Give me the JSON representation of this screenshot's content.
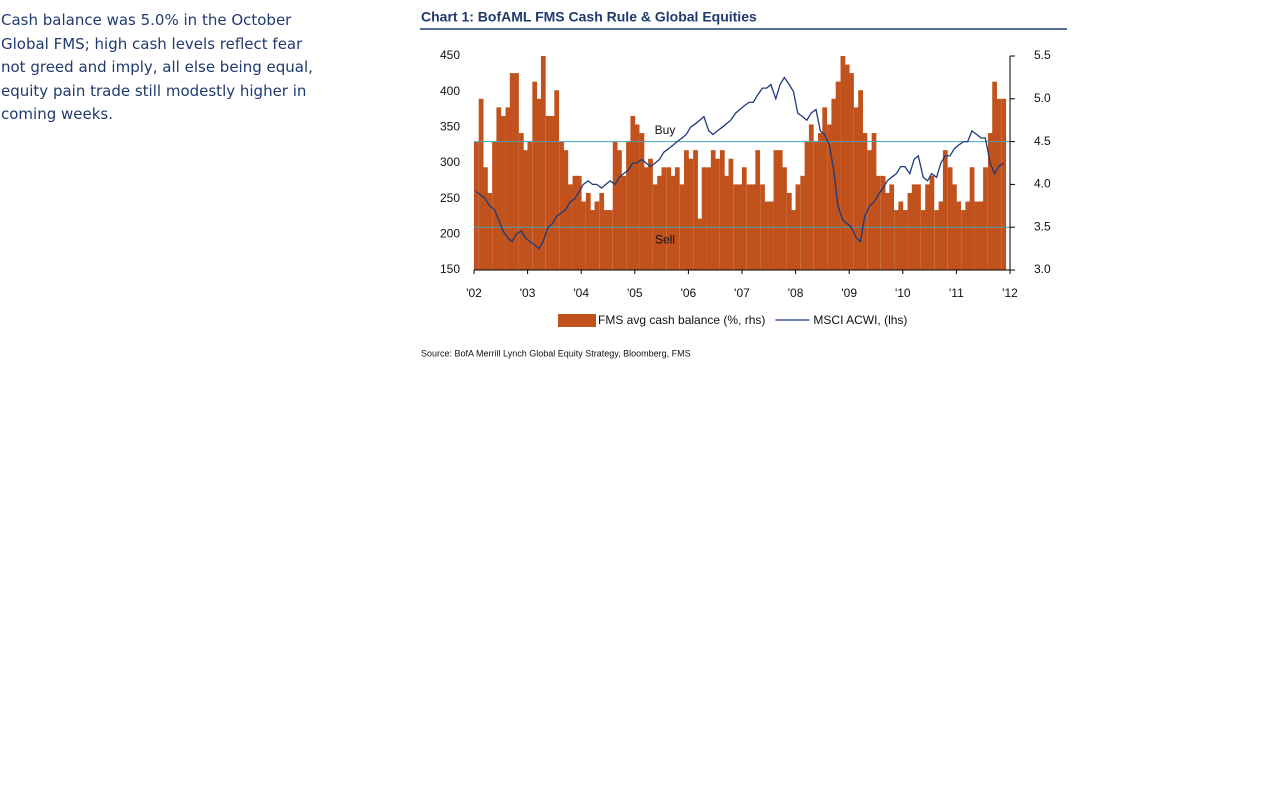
{
  "note_lines": [
    "Cash balance was 5.0% in the October",
    "Global FMS; high cash levels reflect fear",
    "not greed and imply, all else being equal,",
    "equity pain trade still modestly higher in",
    "coming weeks."
  ],
  "chart_data": {
    "type": "bar-line",
    "title": "Chart 1: BofAML FMS Cash Rule & Global Equities",
    "source": "Source: BofA Merrill Lynch Global Equity Strategy, Bloomberg, FMS",
    "xlim": [
      2002,
      2012
    ],
    "xticks": [
      {
        "value": 2002,
        "label": "'02"
      },
      {
        "value": 2003,
        "label": "'03"
      },
      {
        "value": 2004,
        "label": "'04"
      },
      {
        "value": 2005,
        "label": "'05"
      },
      {
        "value": 2006,
        "label": "'06"
      },
      {
        "value": 2007,
        "label": "'07"
      },
      {
        "value": 2008,
        "label": "'08"
      },
      {
        "value": 2009,
        "label": "'09"
      },
      {
        "value": 2010,
        "label": "'10"
      },
      {
        "value": 2011,
        "label": "'11"
      },
      {
        "value": 2012,
        "label": "'12"
      }
    ],
    "ylim": [
      150,
      450
    ],
    "yticks": [
      150,
      200,
      250,
      300,
      350,
      400,
      450
    ],
    "y2lim": [
      3,
      5.5
    ],
    "y2ticks": [
      {
        "value": 3,
        "label": "3.0"
      },
      3.5,
      {
        "value": 4,
        "label": "4.0"
      },
      4.5,
      {
        "value": 5,
        "label": "5.0"
      },
      5.5
    ],
    "reference_lines": [
      {
        "label": "Buy",
        "value": 4.5,
        "axis": "y2",
        "color": "#4a9fb3"
      },
      {
        "label": "Sell",
        "value": 3.5,
        "axis": "y2",
        "color": "#4a9fb3"
      }
    ],
    "x": [
      2002.04,
      2002.13,
      2002.21,
      2002.29,
      2002.38,
      2002.46,
      2002.54,
      2002.63,
      2002.71,
      2002.79,
      2002.88,
      2002.96,
      2003.04,
      2003.13,
      2003.21,
      2003.29,
      2003.38,
      2003.46,
      2003.54,
      2003.63,
      2003.71,
      2003.79,
      2003.88,
      2003.96,
      2004.04,
      2004.13,
      2004.21,
      2004.29,
      2004.38,
      2004.46,
      2004.54,
      2004.63,
      2004.71,
      2004.79,
      2004.88,
      2004.96,
      2005.04,
      2005.13,
      2005.21,
      2005.29,
      2005.38,
      2005.46,
      2005.54,
      2005.63,
      2005.71,
      2005.79,
      2005.88,
      2005.96,
      2006.04,
      2006.13,
      2006.21,
      2006.29,
      2006.38,
      2006.46,
      2006.54,
      2006.63,
      2006.71,
      2006.79,
      2006.88,
      2006.96,
      2007.04,
      2007.13,
      2007.21,
      2007.29,
      2007.38,
      2007.46,
      2007.54,
      2007.63,
      2007.71,
      2007.79,
      2007.88,
      2007.96,
      2008.04,
      2008.13,
      2008.21,
      2008.29,
      2008.38,
      2008.46,
      2008.54,
      2008.63,
      2008.71,
      2008.79,
      2008.88,
      2008.96,
      2009.04,
      2009.13,
      2009.21,
      2009.29,
      2009.38,
      2009.46,
      2009.54,
      2009.63,
      2009.71,
      2009.79,
      2009.88,
      2009.96,
      2010.04,
      2010.13,
      2010.21,
      2010.29,
      2010.38,
      2010.46,
      2010.54,
      2010.63,
      2010.71,
      2010.79,
      2010.88,
      2010.96,
      2011.04,
      2011.13,
      2011.21,
      2011.29,
      2011.38,
      2011.46,
      2011.54,
      2011.63,
      2011.71,
      2011.79,
      2011.88
    ],
    "series": [
      {
        "name": "FMS avg cash balance (%, rhs)",
        "type": "bar",
        "axis": "y2",
        "color": "#c1521d",
        "values": [
          4.5,
          5.0,
          4.2,
          3.9,
          4.5,
          4.9,
          4.8,
          4.9,
          5.3,
          5.3,
          4.6,
          4.4,
          4.5,
          5.2,
          5.0,
          5.5,
          4.8,
          4.8,
          5.1,
          4.5,
          4.4,
          4.0,
          4.1,
          4.1,
          3.8,
          3.9,
          3.7,
          3.8,
          3.9,
          3.7,
          3.7,
          4.5,
          4.4,
          4.1,
          4.5,
          4.8,
          4.7,
          4.6,
          4.2,
          4.3,
          4.0,
          4.1,
          4.2,
          4.2,
          4.1,
          4.2,
          4.0,
          4.4,
          4.3,
          4.4,
          3.6,
          4.2,
          4.2,
          4.4,
          4.3,
          4.4,
          4.1,
          4.3,
          4.0,
          4.0,
          4.2,
          4.0,
          4.0,
          4.4,
          4.0,
          3.8,
          3.8,
          4.4,
          4.4,
          4.2,
          3.9,
          3.7,
          4.0,
          4.1,
          4.5,
          4.7,
          4.5,
          4.6,
          4.9,
          4.7,
          5.0,
          5.2,
          5.5,
          5.4,
          5.3,
          4.9,
          5.1,
          4.6,
          4.4,
          4.6,
          4.1,
          4.1,
          3.9,
          4.0,
          3.7,
          3.8,
          3.7,
          3.9,
          4.0,
          4.0,
          3.7,
          4.0,
          4.1,
          3.7,
          3.8,
          4.4,
          4.2,
          4.0,
          3.8,
          3.7,
          3.8,
          4.2,
          3.8,
          3.8,
          4.2,
          4.6,
          5.2,
          5.0,
          5.0
        ]
      },
      {
        "name": "MSCI ACWI, (lhs)",
        "type": "line",
        "axis": "y",
        "color": "#1c3a7c",
        "values": [
          260,
          255,
          250,
          240,
          235,
          220,
          205,
          195,
          190,
          200,
          205,
          195,
          190,
          185,
          180,
          190,
          210,
          215,
          225,
          230,
          235,
          245,
          250,
          260,
          270,
          275,
          270,
          270,
          265,
          270,
          275,
          270,
          280,
          285,
          290,
          300,
          300,
          305,
          300,
          295,
          300,
          305,
          315,
          320,
          325,
          330,
          335,
          340,
          350,
          355,
          360,
          365,
          345,
          340,
          345,
          350,
          355,
          360,
          370,
          375,
          380,
          385,
          385,
          395,
          405,
          405,
          410,
          390,
          410,
          420,
          410,
          400,
          370,
          365,
          360,
          370,
          375,
          345,
          340,
          325,
          290,
          240,
          220,
          215,
          210,
          195,
          190,
          225,
          240,
          245,
          255,
          265,
          275,
          280,
          285,
          295,
          295,
          285,
          305,
          310,
          280,
          275,
          285,
          280,
          300,
          310,
          310,
          320,
          325,
          330,
          330,
          345,
          340,
          335,
          335,
          300,
          285,
          295,
          300
        ]
      }
    ]
  }
}
